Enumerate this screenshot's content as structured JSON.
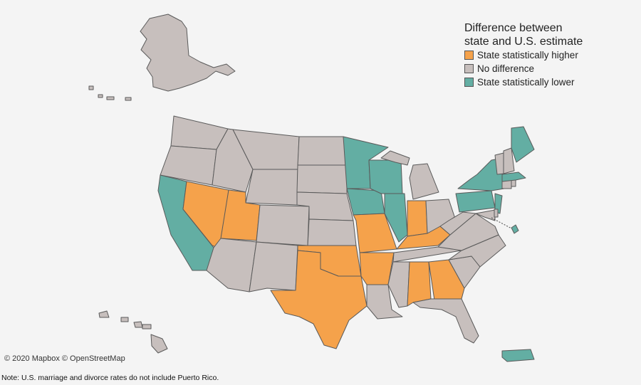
{
  "legend": {
    "title_line1": "Difference between",
    "title_line2": "state and U.S. estimate",
    "items": [
      {
        "label": "State statistically higher",
        "color": "#f5a24b"
      },
      {
        "label": "No difference",
        "color": "#c7bfbd"
      },
      {
        "label": "State statistically lower",
        "color": "#63aea3"
      }
    ]
  },
  "attribution": "© 2020 Mapbox © OpenStreetMap",
  "note": "Note: U.S. marriage and divorce rates do not include Puerto Rico.",
  "colors": {
    "higher": "#f5a24b",
    "none": "#c7bfbd",
    "lower": "#63aea3",
    "background": "#f4f4f4"
  },
  "states": {
    "higher": [
      "Nevada",
      "Utah",
      "Texas",
      "Oklahoma",
      "Missouri",
      "Arkansas",
      "Indiana",
      "Kentucky",
      "Alabama",
      "Georgia"
    ],
    "lower": [
      "California",
      "Minnesota",
      "Wisconsin",
      "Iowa",
      "Illinois",
      "New York",
      "Pennsylvania",
      "New Jersey",
      "Massachusetts",
      "Maine",
      "Puerto Rico",
      "District of Columbia"
    ]
  }
}
